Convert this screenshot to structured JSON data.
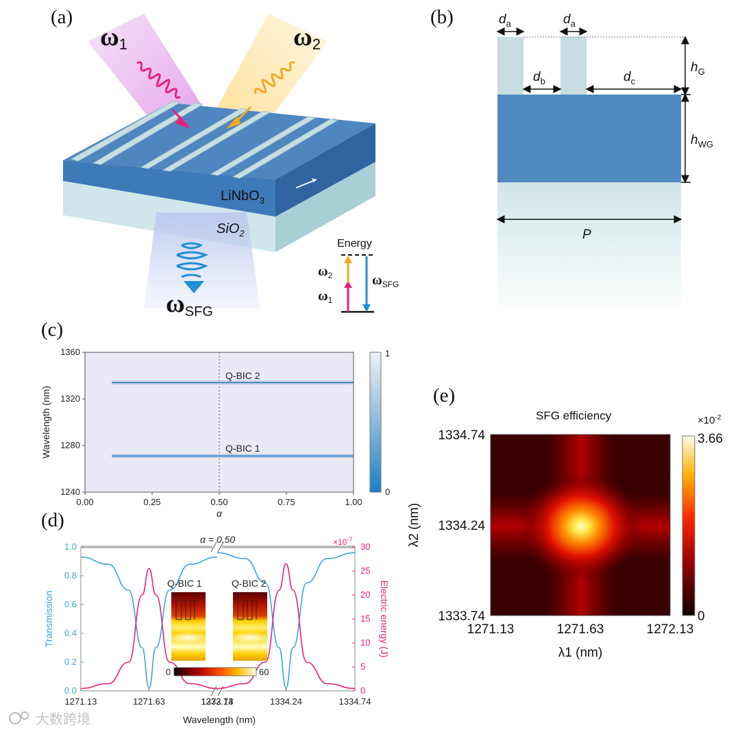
{
  "panel_a": {
    "label": "(a)",
    "omega1": "ω",
    "omega1_sub": "1",
    "omega2": "ω",
    "omega2_sub": "2",
    "omega_sfg": "ω",
    "omega_sfg_sub": "SFG",
    "linbo3": "LiNbO",
    "linbo3_sub": "3",
    "sio2": "SiO",
    "sio2_sub": "2",
    "energy": "Energy",
    "e_omega2": "ω",
    "e_omega2_sub": "2",
    "e_omega1": "ω",
    "e_omega1_sub": "1",
    "e_omega_sfg": "ω",
    "e_omega_sfg_sub": "SFG",
    "colors": {
      "omega1": "#e8207a",
      "omega2": "#f2a81e",
      "sfg": "#1f8fd6",
      "slab": "#4f86bf",
      "substrate": "#c9e2e6"
    }
  },
  "panel_b": {
    "label": "(b)",
    "da1": "d",
    "da1_sub": "a",
    "da2": "d",
    "da2_sub": "a",
    "db": "d",
    "db_sub": "b",
    "dc": "d",
    "dc_sub": "c",
    "hg": "h",
    "hg_sub": "G",
    "hwg": "h",
    "hwg_sub": "WG",
    "p": "P",
    "colors": {
      "grating": "#c7dde1",
      "waveguide": "#5089c0",
      "substrate": "#d3e6e9"
    }
  },
  "panel_c": {
    "label": "(c)",
    "annotations": [
      "Q-BIC 2",
      "Q-BIC 1"
    ],
    "colorbar_max": "1",
    "colorbar_min": "0"
  },
  "panel_d": {
    "label": "(d)",
    "alpha": "α = 0.50",
    "exp_label": "×10",
    "exp_sup": "-7",
    "inset1_title": "Q-BIC 1",
    "inset2_title": "Q-BIC 2",
    "inset_cb_min": "0",
    "inset_cb_max": "60"
  },
  "panel_e": {
    "label": "(e)",
    "title": "SFG efficiency",
    "exp_label": "×10",
    "exp_sup": "-2",
    "colorbar_max": "3.66",
    "colorbar_min": "0"
  },
  "watermark": "大数跨境",
  "chart_data": [
    {
      "panel": "c",
      "type": "heatmap",
      "title": "",
      "xlabel": "α",
      "ylabel": "Wavelength (nm)",
      "xlim": [
        0,
        1
      ],
      "ylim": [
        1240,
        1360
      ],
      "x_ticks": [
        "0.00",
        "0.25",
        "0.50",
        "0.75",
        "1.00"
      ],
      "y_ticks": [
        "1240",
        "1280",
        "1320",
        "1360"
      ],
      "colorbar_range": [
        0,
        1
      ],
      "marker_line_x": 0.5,
      "series": [
        {
          "name": "Q-BIC 2",
          "x": [
            0.1,
            0.25,
            0.5,
            0.75,
            1.0
          ],
          "y": [
            1334,
            1334,
            1334,
            1334,
            1334
          ]
        },
        {
          "name": "Q-BIC 1",
          "x": [
            0.1,
            0.25,
            0.5,
            0.75,
            1.0
          ],
          "y": [
            1271,
            1271,
            1271,
            1271,
            1271
          ]
        }
      ]
    },
    {
      "panel": "d",
      "type": "line",
      "title": "",
      "xlabel": "Wavelength (nm)",
      "ylabel": "Transmission",
      "y2label": "Electric energy (J)",
      "x_ticks": [
        "1271.13",
        "1271.63",
        "1272.13",
        "1333.74",
        "1334.24",
        "1334.74"
      ],
      "y_ticks": [
        "0.0",
        "0.2",
        "0.4",
        "0.6",
        "0.8",
        "1.0"
      ],
      "y2_ticks": [
        "0",
        "5",
        "10",
        "15",
        "20",
        "25",
        "30"
      ],
      "ylim": [
        0,
        1
      ],
      "y2lim": [
        0,
        30
      ],
      "series": [
        {
          "axis": "left",
          "segment": 1,
          "x": [
            1271.13,
            1271.33,
            1271.48,
            1271.58,
            1271.63,
            1271.68,
            1271.78,
            1271.93,
            1272.13
          ],
          "y": [
            0.93,
            0.88,
            0.7,
            0.3,
            0.02,
            0.3,
            0.7,
            0.88,
            0.93
          ]
        },
        {
          "axis": "right",
          "segment": 1,
          "x": [
            1271.13,
            1271.33,
            1271.48,
            1271.58,
            1271.63,
            1271.68,
            1271.78,
            1271.93,
            1272.13
          ],
          "y": [
            0.5,
            1.5,
            6,
            20,
            25.5,
            20,
            6,
            1.5,
            0.5
          ]
        },
        {
          "axis": "left",
          "segment": 2,
          "x": [
            1333.74,
            1333.94,
            1334.09,
            1334.19,
            1334.24,
            1334.29,
            1334.39,
            1334.54,
            1334.74
          ],
          "y": [
            0.96,
            0.92,
            0.75,
            0.3,
            0.02,
            0.3,
            0.75,
            0.92,
            0.96
          ]
        },
        {
          "axis": "right",
          "segment": 2,
          "x": [
            1333.74,
            1333.94,
            1334.09,
            1334.19,
            1334.24,
            1334.29,
            1334.39,
            1334.54,
            1334.74
          ],
          "y": [
            0.5,
            1.5,
            6,
            21,
            26.5,
            21,
            6,
            1.5,
            0.5
          ]
        }
      ]
    },
    {
      "panel": "e",
      "type": "heatmap",
      "title": "SFG efficiency",
      "xlabel": "λ1 (nm)",
      "ylabel": "λ2 (nm)",
      "x_ticks": [
        "1271.13",
        "1271.63",
        "1272.13"
      ],
      "y_ticks": [
        "1333.74",
        "1334.24",
        "1334.74"
      ],
      "xlim": [
        1271.13,
        1272.13
      ],
      "ylim": [
        1333.74,
        1334.74
      ],
      "peak": {
        "x": 1271.63,
        "y": 1334.24,
        "value": 3.66
      },
      "colorbar_range": [
        0,
        3.66
      ]
    }
  ]
}
